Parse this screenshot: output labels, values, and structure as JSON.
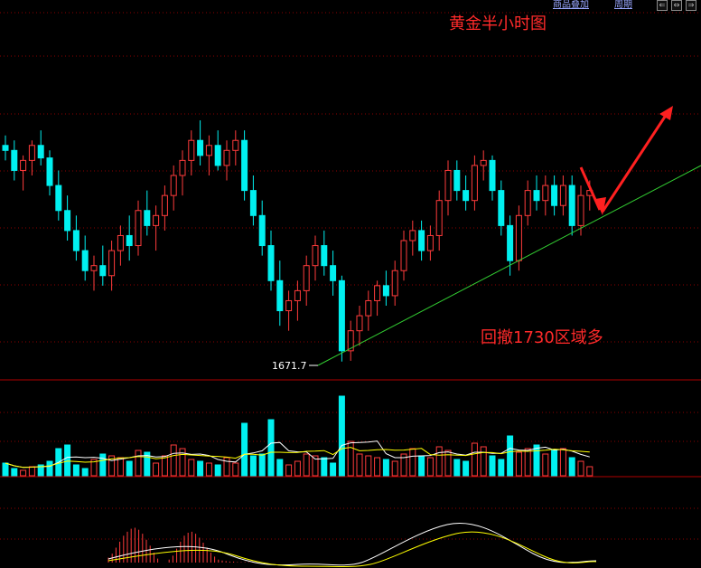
{
  "toolbar": {
    "overlay_label": "商品叠加",
    "period_label": "周期",
    "nav_buttons": [
      "⇐",
      "⇔",
      "⇒"
    ]
  },
  "title": "黄金半小时图",
  "annotation": "回撤1730区域多",
  "low_label": "1671.7",
  "colors": {
    "up": "#ff3b3b",
    "down": "#00f0f0",
    "grid": "#8b0000",
    "trendline": "#32cd32",
    "arrow": "#ff2020",
    "ma_white": "#ffffff",
    "ma_yellow": "#ffff00"
  },
  "chart_data": [
    {
      "type": "candlestick",
      "title": "黄金半小时图",
      "low_point": 1671.7,
      "trendline": "rising green support line from the 1671.7 low through the recent lows",
      "arrows": [
        "short red arrow pointing down to the trendline",
        "long red arrow pointing up from the trendline"
      ],
      "candles": [
        {
          "o": 1758,
          "h": 1762,
          "l": 1752,
          "c": 1756
        },
        {
          "o": 1756,
          "h": 1760,
          "l": 1744,
          "c": 1748
        },
        {
          "o": 1748,
          "h": 1754,
          "l": 1740,
          "c": 1752
        },
        {
          "o": 1752,
          "h": 1760,
          "l": 1746,
          "c": 1758
        },
        {
          "o": 1758,
          "h": 1764,
          "l": 1750,
          "c": 1753
        },
        {
          "o": 1753,
          "h": 1756,
          "l": 1738,
          "c": 1742
        },
        {
          "o": 1742,
          "h": 1748,
          "l": 1728,
          "c": 1732
        },
        {
          "o": 1732,
          "h": 1738,
          "l": 1720,
          "c": 1724
        },
        {
          "o": 1724,
          "h": 1730,
          "l": 1712,
          "c": 1716
        },
        {
          "o": 1716,
          "h": 1722,
          "l": 1704,
          "c": 1708
        },
        {
          "o": 1708,
          "h": 1714,
          "l": 1700,
          "c": 1710
        },
        {
          "o": 1710,
          "h": 1718,
          "l": 1702,
          "c": 1706
        },
        {
          "o": 1706,
          "h": 1720,
          "l": 1700,
          "c": 1716
        },
        {
          "o": 1716,
          "h": 1726,
          "l": 1710,
          "c": 1722
        },
        {
          "o": 1722,
          "h": 1730,
          "l": 1712,
          "c": 1718
        },
        {
          "o": 1718,
          "h": 1736,
          "l": 1714,
          "c": 1732
        },
        {
          "o": 1732,
          "h": 1740,
          "l": 1722,
          "c": 1726
        },
        {
          "o": 1726,
          "h": 1734,
          "l": 1716,
          "c": 1730
        },
        {
          "o": 1730,
          "h": 1742,
          "l": 1724,
          "c": 1738
        },
        {
          "o": 1738,
          "h": 1750,
          "l": 1732,
          "c": 1746
        },
        {
          "o": 1746,
          "h": 1756,
          "l": 1738,
          "c": 1752
        },
        {
          "o": 1752,
          "h": 1764,
          "l": 1746,
          "c": 1760
        },
        {
          "o": 1760,
          "h": 1768,
          "l": 1750,
          "c": 1754
        },
        {
          "o": 1754,
          "h": 1762,
          "l": 1746,
          "c": 1758
        },
        {
          "o": 1758,
          "h": 1764,
          "l": 1748,
          "c": 1750
        },
        {
          "o": 1750,
          "h": 1760,
          "l": 1744,
          "c": 1756
        },
        {
          "o": 1756,
          "h": 1764,
          "l": 1750,
          "c": 1760
        },
        {
          "o": 1760,
          "h": 1764,
          "l": 1736,
          "c": 1740
        },
        {
          "o": 1740,
          "h": 1746,
          "l": 1726,
          "c": 1730
        },
        {
          "o": 1730,
          "h": 1736,
          "l": 1714,
          "c": 1718
        },
        {
          "o": 1718,
          "h": 1724,
          "l": 1700,
          "c": 1704
        },
        {
          "o": 1704,
          "h": 1712,
          "l": 1686,
          "c": 1692
        },
        {
          "o": 1692,
          "h": 1700,
          "l": 1684,
          "c": 1696
        },
        {
          "o": 1696,
          "h": 1704,
          "l": 1688,
          "c": 1700
        },
        {
          "o": 1700,
          "h": 1714,
          "l": 1694,
          "c": 1710
        },
        {
          "o": 1710,
          "h": 1722,
          "l": 1704,
          "c": 1718
        },
        {
          "o": 1718,
          "h": 1724,
          "l": 1706,
          "c": 1710
        },
        {
          "o": 1710,
          "h": 1716,
          "l": 1698,
          "c": 1704
        },
        {
          "o": 1704,
          "h": 1706,
          "l": 1671.7,
          "c": 1676
        },
        {
          "o": 1676,
          "h": 1688,
          "l": 1672,
          "c": 1684
        },
        {
          "o": 1684,
          "h": 1694,
          "l": 1678,
          "c": 1690
        },
        {
          "o": 1690,
          "h": 1700,
          "l": 1684,
          "c": 1696
        },
        {
          "o": 1696,
          "h": 1704,
          "l": 1690,
          "c": 1702
        },
        {
          "o": 1702,
          "h": 1708,
          "l": 1694,
          "c": 1698
        },
        {
          "o": 1698,
          "h": 1712,
          "l": 1694,
          "c": 1708
        },
        {
          "o": 1708,
          "h": 1724,
          "l": 1704,
          "c": 1720
        },
        {
          "o": 1720,
          "h": 1728,
          "l": 1714,
          "c": 1724
        },
        {
          "o": 1724,
          "h": 1728,
          "l": 1712,
          "c": 1716
        },
        {
          "o": 1716,
          "h": 1726,
          "l": 1712,
          "c": 1722
        },
        {
          "o": 1722,
          "h": 1740,
          "l": 1716,
          "c": 1736
        },
        {
          "o": 1736,
          "h": 1752,
          "l": 1730,
          "c": 1748
        },
        {
          "o": 1748,
          "h": 1752,
          "l": 1736,
          "c": 1740
        },
        {
          "o": 1740,
          "h": 1746,
          "l": 1732,
          "c": 1736
        },
        {
          "o": 1736,
          "h": 1754,
          "l": 1732,
          "c": 1750
        },
        {
          "o": 1750,
          "h": 1756,
          "l": 1744,
          "c": 1752
        },
        {
          "o": 1752,
          "h": 1754,
          "l": 1736,
          "c": 1740
        },
        {
          "o": 1740,
          "h": 1744,
          "l": 1722,
          "c": 1726
        },
        {
          "o": 1726,
          "h": 1730,
          "l": 1706,
          "c": 1712
        },
        {
          "o": 1712,
          "h": 1734,
          "l": 1708,
          "c": 1730
        },
        {
          "o": 1730,
          "h": 1744,
          "l": 1726,
          "c": 1740
        },
        {
          "o": 1740,
          "h": 1746,
          "l": 1732,
          "c": 1736
        },
        {
          "o": 1736,
          "h": 1746,
          "l": 1730,
          "c": 1742
        },
        {
          "o": 1742,
          "h": 1746,
          "l": 1730,
          "c": 1734
        },
        {
          "o": 1734,
          "h": 1746,
          "l": 1730,
          "c": 1742
        },
        {
          "o": 1742,
          "h": 1746,
          "l": 1722,
          "c": 1726
        },
        {
          "o": 1726,
          "h": 1742,
          "l": 1722,
          "c": 1738
        },
        {
          "o": 1738,
          "h": 1744,
          "l": 1732,
          "c": 1740
        }
      ],
      "volume": [
        14,
        8,
        6,
        10,
        12,
        16,
        30,
        34,
        12,
        8,
        18,
        24,
        22,
        20,
        16,
        28,
        26,
        14,
        22,
        34,
        30,
        18,
        16,
        14,
        12,
        20,
        14,
        58,
        22,
        24,
        62,
        18,
        12,
        16,
        24,
        22,
        20,
        14,
        88,
        38,
        24,
        22,
        20,
        18,
        16,
        24,
        30,
        22,
        20,
        32,
        28,
        18,
        16,
        36,
        32,
        22,
        18,
        44,
        26,
        30,
        34,
        24,
        28,
        30,
        20,
        16,
        10
      ],
      "macd": [
        10,
        18,
        30,
        42,
        54,
        62,
        68,
        70,
        66,
        58,
        46,
        34,
        20,
        8,
        0,
        0,
        6,
        14,
        28,
        42,
        54,
        60,
        62,
        58,
        50,
        40,
        30,
        20,
        12,
        6,
        4,
        3,
        2,
        2,
        1,
        1,
        1,
        1,
        1,
        1
      ]
    }
  ]
}
